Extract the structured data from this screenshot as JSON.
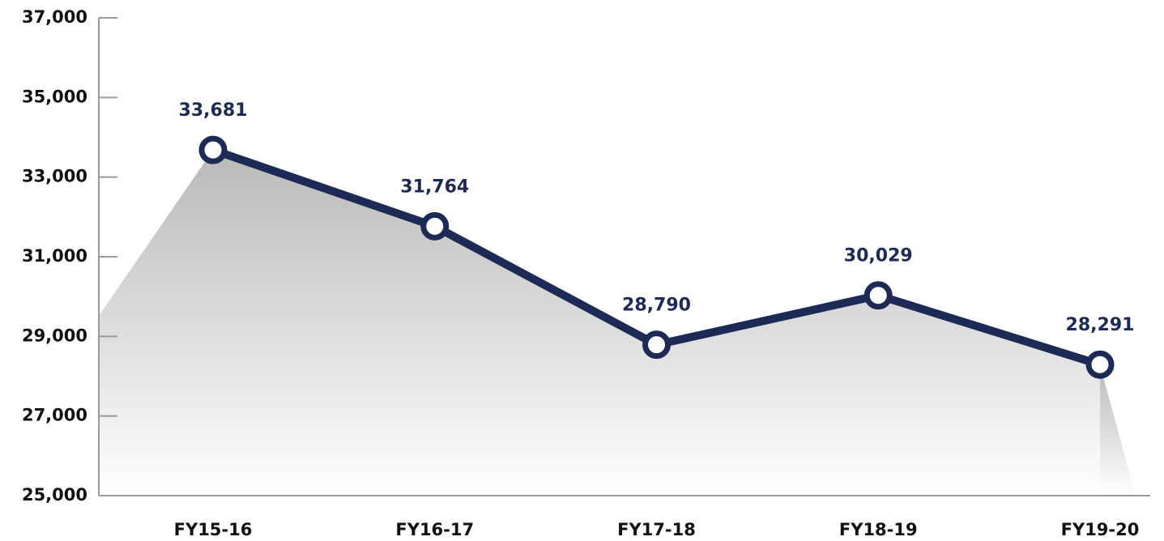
{
  "chart_data": {
    "type": "line",
    "categories": [
      "FY15-16",
      "FY16-17",
      "FY17-18",
      "FY18-19",
      "FY19-20"
    ],
    "values": [
      33681,
      31764,
      28790,
      30029,
      28291
    ],
    "value_labels": [
      "33,681",
      "31,764",
      "28,790",
      "30,029",
      "28,291"
    ],
    "color": "#1c2a55",
    "ylim": [
      25000,
      37000
    ],
    "yticks": [
      {
        "value": 25000,
        "label": "25,000"
      },
      {
        "value": 27000,
        "label": "27,000"
      },
      {
        "value": 29000,
        "label": "29,000"
      },
      {
        "value": 31000,
        "label": "31,000"
      },
      {
        "value": 33000,
        "label": "33,000"
      },
      {
        "value": 35000,
        "label": "35,000"
      },
      {
        "value": 37000,
        "label": "37,000"
      }
    ],
    "grid": false
  }
}
